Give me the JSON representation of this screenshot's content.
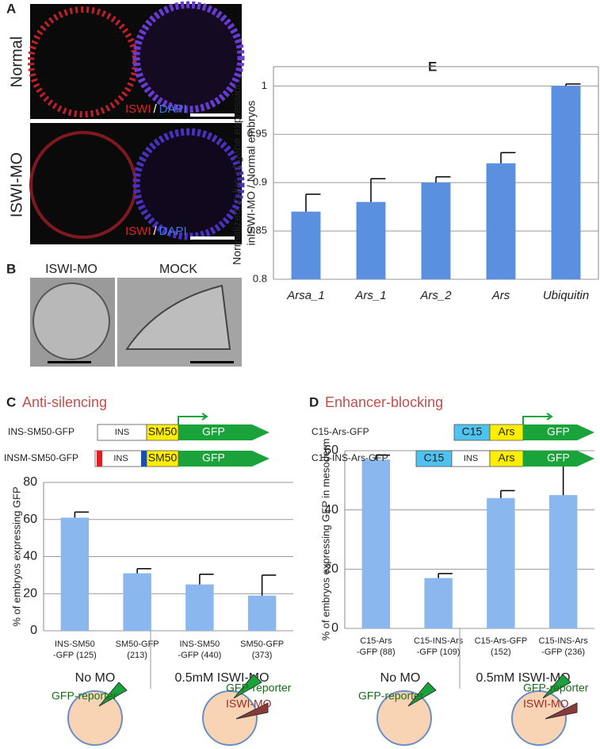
{
  "figure": {
    "panel_a": {
      "label": "A",
      "rows": [
        "Normal",
        "ISWI-MO"
      ],
      "stain": [
        "ISWI",
        "/",
        "DAPI"
      ]
    },
    "panel_b": {
      "label": "B",
      "images": [
        "ISWI-MO",
        "MOCK"
      ]
    }
  },
  "chart_data": [
    {
      "type": "bar",
      "panel": "E",
      "y_label": [
        "Normalized Value of gene expression",
        "inISWI-MO / Normal embryos"
      ],
      "categories": [
        "Arsa_1",
        "Ars_1",
        "Ars_2",
        "Ars",
        "Ubiquitin"
      ],
      "values": [
        0.87,
        0.88,
        0.9,
        0.92,
        1.0
      ],
      "errors": [
        0.018,
        0.024,
        0.006,
        0.011,
        0.002
      ],
      "color": "#5b8fe0",
      "ylim": [
        0.8,
        1.02
      ],
      "yticks": [
        0.8,
        0.85,
        0.9,
        0.95,
        1
      ],
      "grid": true
    },
    {
      "type": "bar",
      "panel": "C",
      "title": "Anti-silencing",
      "constructs": [
        {
          "name": "INS-SM50-GFP",
          "parts": [
            "INS",
            "SM50",
            "GFP"
          ]
        },
        {
          "name": "INSM-SM50-GFP",
          "parts": [
            "INS",
            "SM50",
            "GFP"
          ]
        }
      ],
      "y_label": "% of embryos expressing GFP",
      "categories": [
        [
          "INS-SM50",
          "-GFP (125)"
        ],
        [
          "SM50-GFP",
          "(213)"
        ],
        [
          "INS-SM50",
          "-GFP (440)"
        ],
        [
          "SM50-GFP",
          "(373)"
        ]
      ],
      "values": [
        61,
        31,
        25,
        19
      ],
      "errors": [
        3,
        2.5,
        5.5,
        11
      ],
      "color": "#8ab8ee",
      "ylim": [
        0,
        80
      ],
      "yticks": [
        0,
        20,
        40,
        60,
        80
      ],
      "grid": true,
      "groups": [
        "No MO",
        "0.5mM ISWI-MO"
      ],
      "annotations": [
        "GFP-reporter",
        "GFP-reporter",
        "ISWI-MO"
      ]
    },
    {
      "type": "bar",
      "panel": "D",
      "title": "Enhancer-blocking",
      "constructs": [
        {
          "name": "C15-Ars-GFP",
          "parts": [
            "C15",
            "Ars",
            "GFP"
          ]
        },
        {
          "name": "C15-INS-Ars-GFP",
          "parts": [
            "C15",
            "INS",
            "Ars",
            "GFP"
          ]
        }
      ],
      "y_label": "% of embryos expressing GFP  in mesoderm",
      "categories": [
        [
          "C15-Ars",
          "-GFP (88)"
        ],
        [
          "C15-INS-Ars",
          "-GFP (109)"
        ],
        [
          "C15-Ars-GFP",
          "(152)"
        ],
        [
          "C15-INS-Ars",
          "-GFP (236)"
        ]
      ],
      "values": [
        57,
        17,
        44,
        45
      ],
      "errors": [
        1.5,
        1.5,
        2.5,
        10
      ],
      "color": "#8ab8ee",
      "ylim": [
        0,
        60
      ],
      "yticks": [
        0,
        20,
        40,
        60
      ],
      "grid": true,
      "groups": [
        "No MO",
        "0.5mM ISWI-MO"
      ],
      "annotations": [
        "GFP-reporter",
        "GFP-reporter",
        "ISWI-MO"
      ]
    }
  ]
}
